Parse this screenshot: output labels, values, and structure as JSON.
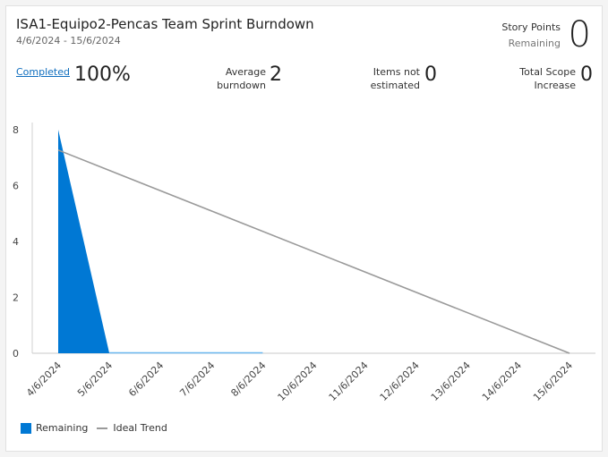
{
  "header": {
    "title": "ISA1-Equipo2-Pencas Team Sprint Burndown",
    "date_range": "4/6/2024 - 15/6/2024",
    "story_points_label": "Story Points",
    "remaining_label": "Remaining",
    "remaining_value": "0"
  },
  "metrics": {
    "completed_label": "Completed",
    "completed_value": "100%",
    "avg_burndown_line1": "Average",
    "avg_burndown_line2": "burndown",
    "avg_burndown_value": "2",
    "items_not_line1": "Items not",
    "items_not_line2": "estimated",
    "items_not_value": "0",
    "scope_line1": "Total Scope",
    "scope_line2": "Increase",
    "scope_value": "0"
  },
  "legend": {
    "remaining": "Remaining",
    "ideal": "Ideal Trend"
  },
  "colors": {
    "remaining": "#0078d4",
    "ideal": "#9a9a9a",
    "remaining_flat": "#6cb8f0"
  },
  "chart_data": {
    "type": "area",
    "categories": [
      "4/6/2024",
      "5/6/2024",
      "6/6/2024",
      "7/6/2024",
      "8/6/2024",
      "10/6/2024",
      "11/6/2024",
      "12/6/2024",
      "13/6/2024",
      "14/6/2024",
      "15/6/2024"
    ],
    "y_ticks": [
      "0",
      "2",
      "4",
      "6",
      "8"
    ],
    "ylim": [
      0,
      8
    ],
    "series": [
      {
        "name": "Remaining",
        "values": [
          8,
          0,
          0,
          0,
          0,
          null,
          null,
          null,
          null,
          null,
          null
        ]
      },
      {
        "name": "Ideal Trend",
        "values": [
          7.27,
          6.55,
          5.82,
          5.09,
          4.36,
          3.64,
          2.91,
          2.18,
          1.45,
          0.73,
          0
        ]
      }
    ],
    "legend_position": "bottom-left",
    "grid": false
  }
}
